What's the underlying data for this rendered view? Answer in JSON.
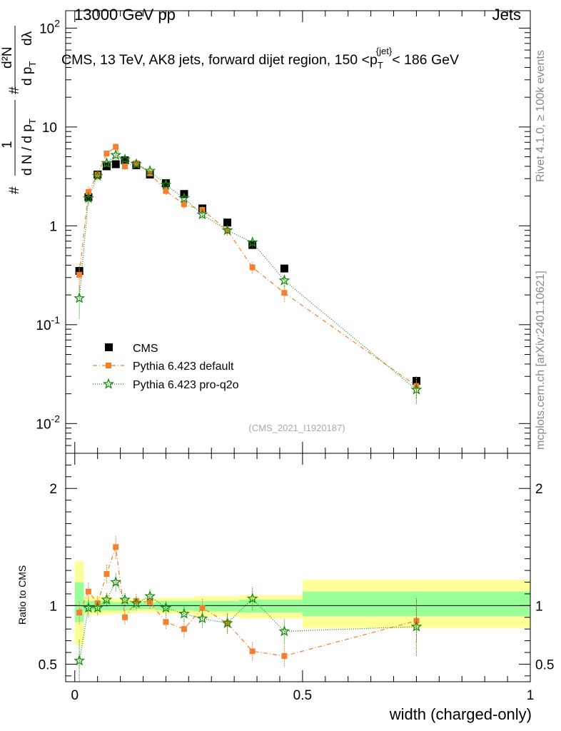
{
  "header": {
    "left": "13000 GeV pp",
    "right": "Jets"
  },
  "side_labels": {
    "rivet": "Rivet 4.1.0, ≥ 100k events",
    "mcplots": "mcplots.cern.ch [arXiv:2401.10621]"
  },
  "colors": {
    "cms": "#000000",
    "default": "#f47f30",
    "pro": "#1a8a0e",
    "band_outer": "#ffff99",
    "band_inner": "#99ff99"
  },
  "chart_data": [
    {
      "type": "scatter",
      "panel": "main",
      "title": "CMS, 13 TeV, AK8 jets, forward dijet region, 150 <p_T^{jet}< 186 GeV",
      "title_parts": {
        "pre": "CMS, 13 TeV, AK8 jets, forward dijet region, 150 <p",
        "sub": "T",
        "sup": "{jet}",
        "post": "< 186 GeV"
      },
      "ylabel": "1/(dN/dp_T) dN/(dp_T dλ)",
      "ylabel_parts": {
        "hash": "#",
        "one": "1",
        "denominator": "d N / d p",
        "sub": "T",
        "hash2": "#",
        "numerator_top": "d²N",
        "numerator_bottom": "d p",
        "sub2": "T",
        "dlambda": "dλ"
      },
      "yscale": "log",
      "ylim": [
        0.005,
        150
      ],
      "xlim": [
        -0.02,
        1.0
      ],
      "yticks": [
        {
          "value": 0.01,
          "base": "10",
          "exp": "-2"
        },
        {
          "value": 0.1,
          "base": "10",
          "exp": "-1"
        },
        {
          "value": 1,
          "label": "1"
        },
        {
          "value": 10,
          "label": "10"
        },
        {
          "value": 100,
          "base": "10",
          "exp": "2"
        }
      ],
      "watermark": "(CMS_2021_I1920187)",
      "legend": {
        "placement": "lower-left",
        "entries": [
          "CMS",
          "Pythia 6.423 default",
          "Pythia 6.423 pro-q2o"
        ]
      },
      "series": [
        {
          "name": "CMS",
          "style": "square",
          "x": [
            0.01,
            0.03,
            0.05,
            0.07,
            0.09,
            0.11,
            0.135,
            0.165,
            0.2,
            0.24,
            0.28,
            0.335,
            0.39,
            0.46,
            0.75
          ],
          "y": [
            0.35,
            1.95,
            3.3,
            4.0,
            4.2,
            4.6,
            4.1,
            3.3,
            2.7,
            2.1,
            1.5,
            1.08,
            0.64,
            0.37,
            0.027
          ],
          "xerr": [
            0.01,
            0.01,
            0.01,
            0.01,
            0.01,
            0.01,
            0.015,
            0.015,
            0.02,
            0.02,
            0.02,
            0.035,
            0.02,
            0.04,
            0.25
          ]
        },
        {
          "name": "Pythia 6.423 default",
          "style": "square-dashdot",
          "x": [
            0.01,
            0.03,
            0.05,
            0.07,
            0.09,
            0.11,
            0.135,
            0.165,
            0.2,
            0.24,
            0.28,
            0.335,
            0.39,
            0.46,
            0.75
          ],
          "y": [
            0.32,
            2.2,
            3.3,
            5.4,
            6.3,
            4.0,
            4.3,
            3.4,
            2.25,
            1.65,
            1.45,
            0.9,
            0.38,
            0.21,
            0.024
          ],
          "yerr": [
            0.1,
            0.3,
            0.3,
            0.4,
            0.5,
            0.3,
            0.3,
            0.2,
            0.2,
            0.15,
            0.12,
            0.08,
            0.05,
            0.04,
            0.006
          ]
        },
        {
          "name": "Pythia 6.423 pro-q2o",
          "style": "star-dotted",
          "x": [
            0.01,
            0.03,
            0.05,
            0.07,
            0.09,
            0.11,
            0.135,
            0.165,
            0.2,
            0.24,
            0.28,
            0.335,
            0.39,
            0.46,
            0.75
          ],
          "y": [
            0.185,
            1.9,
            3.2,
            4.3,
            5.2,
            4.7,
            4.2,
            3.6,
            2.6,
            1.9,
            1.3,
            0.9,
            0.68,
            0.28,
            0.022
          ],
          "yerr": [
            0.07,
            0.3,
            0.3,
            0.4,
            0.5,
            0.3,
            0.3,
            0.2,
            0.2,
            0.15,
            0.12,
            0.1,
            0.08,
            0.04,
            0.006
          ]
        }
      ]
    },
    {
      "type": "scatter",
      "panel": "ratio",
      "xlabel": "width (charged-only)",
      "ylabel": "Ratio to CMS",
      "xlim": [
        -0.02,
        1.0
      ],
      "ylim": [
        0.35,
        2.3
      ],
      "yticks": [
        0.5,
        1,
        2
      ],
      "ytick_labels": [
        "0.5",
        "1",
        "2"
      ],
      "xticks": [
        0,
        0.5,
        1
      ],
      "xtick_labels": [
        "0",
        "0.5",
        "1"
      ],
      "reference_line": 1,
      "bands": [
        {
          "x0": 0.0,
          "x1": 0.02,
          "outer": [
            0.66,
            1.38
          ],
          "inner": [
            0.86,
            1.2
          ]
        },
        {
          "x0": 0.02,
          "x1": 0.08,
          "outer": [
            0.92,
            1.08
          ],
          "inner": [
            0.96,
            1.04
          ]
        },
        {
          "x0": 0.08,
          "x1": 0.13,
          "outer": [
            0.93,
            1.06
          ],
          "inner": [
            0.96,
            1.03
          ]
        },
        {
          "x0": 0.13,
          "x1": 0.18,
          "outer": [
            0.94,
            1.06
          ],
          "inner": [
            0.97,
            1.03
          ]
        },
        {
          "x0": 0.18,
          "x1": 0.26,
          "outer": [
            0.93,
            1.07
          ],
          "inner": [
            0.96,
            1.04
          ]
        },
        {
          "x0": 0.26,
          "x1": 0.36,
          "outer": [
            0.91,
            1.08
          ],
          "inner": [
            0.95,
            1.04
          ]
        },
        {
          "x0": 0.36,
          "x1": 0.5,
          "outer": [
            0.89,
            1.09
          ],
          "inner": [
            0.94,
            1.05
          ]
        },
        {
          "x0": 0.5,
          "x1": 1.0,
          "outer": [
            0.81,
            1.22
          ],
          "inner": [
            0.91,
            1.12
          ]
        }
      ],
      "series": [
        {
          "name": "Pythia 6.423 default",
          "x": [
            0.01,
            0.03,
            0.05,
            0.07,
            0.09,
            0.11,
            0.135,
            0.165,
            0.2,
            0.24,
            0.28,
            0.335,
            0.39,
            0.46,
            0.75
          ],
          "y": [
            0.94,
            1.12,
            1.02,
            1.27,
            1.5,
            0.9,
            1.04,
            1.03,
            0.86,
            0.8,
            0.98,
            0.85,
            0.61,
            0.57,
            0.87
          ],
          "yerr": [
            0.1,
            0.08,
            0.06,
            0.08,
            0.1,
            0.06,
            0.06,
            0.06,
            0.06,
            0.07,
            0.08,
            0.08,
            0.08,
            0.09,
            0.18
          ]
        },
        {
          "name": "Pythia 6.423 pro-q2o",
          "x": [
            0.01,
            0.03,
            0.05,
            0.07,
            0.09,
            0.11,
            0.135,
            0.165,
            0.2,
            0.24,
            0.28,
            0.335,
            0.39,
            0.46,
            0.75
          ],
          "y": [
            0.53,
            0.98,
            0.98,
            1.05,
            1.2,
            1.05,
            1.02,
            1.08,
            0.98,
            0.93,
            0.89,
            0.85,
            1.06,
            0.78,
            0.82
          ],
          "yerr": [
            0.18,
            0.08,
            0.06,
            0.06,
            0.08,
            0.06,
            0.06,
            0.06,
            0.06,
            0.07,
            0.08,
            0.09,
            0.1,
            0.11,
            0.25
          ]
        }
      ]
    }
  ]
}
